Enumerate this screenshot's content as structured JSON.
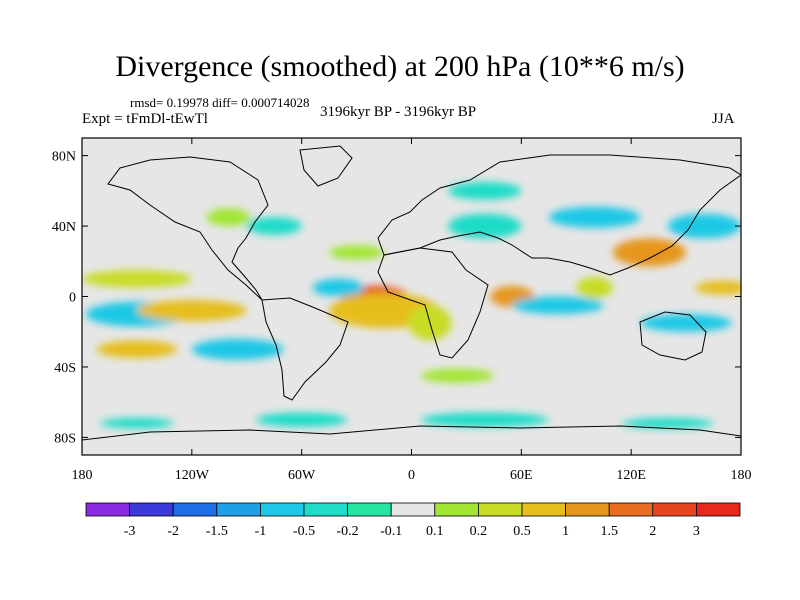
{
  "chart_data": {
    "type": "heatmap",
    "title": "Divergence (smoothed) at 200 hPa (10**6 m/s)",
    "stats": "rmsd= 0.19978 diff= 0.000714028",
    "experiment": "Expt = tFmDl-tEwTl",
    "period": "3196kyr BP - 3196kyr BP",
    "season": "JJA",
    "x_ticks": [
      {
        "value": -180,
        "label": "180"
      },
      {
        "value": -120,
        "label": "120W"
      },
      {
        "value": -60,
        "label": "60W"
      },
      {
        "value": 0,
        "label": "0"
      },
      {
        "value": 60,
        "label": "60E"
      },
      {
        "value": 120,
        "label": "120E"
      },
      {
        "value": 180,
        "label": "180"
      }
    ],
    "y_ticks": [
      {
        "value": 80,
        "label": "80N"
      },
      {
        "value": 40,
        "label": "40N"
      },
      {
        "value": 0,
        "label": "0"
      },
      {
        "value": -40,
        "label": "40S"
      },
      {
        "value": -80,
        "label": "80S"
      }
    ],
    "xlim": [
      -180,
      180
    ],
    "ylim": [
      -90,
      90
    ],
    "colorbar": {
      "colors": [
        "#8a2be2",
        "#3b3bdc",
        "#1e6ee6",
        "#1ea0e6",
        "#1ec8e6",
        "#1edcc8",
        "#24e6a0",
        "#e6e6e6",
        "#a0e632",
        "#c8dc28",
        "#e6be1e",
        "#e6961e",
        "#e66e1e",
        "#e6461e",
        "#e6281e"
      ],
      "labels": [
        "-3",
        "-2",
        "-1.5",
        "-1",
        "-0.5",
        "-0.2",
        "-0.1",
        "0.1",
        "0.2",
        "0.5",
        "1",
        "1.5",
        "2",
        "3"
      ]
    },
    "anomaly_regions": [
      {
        "lon": -20,
        "lat": 0,
        "rlon": 18,
        "rlat": 6,
        "level": 13
      },
      {
        "lon": -15,
        "lat": -8,
        "rlon": 30,
        "rlat": 10,
        "level": 10
      },
      {
        "lon": -40,
        "lat": 5,
        "rlon": 14,
        "rlat": 5,
        "level": 4
      },
      {
        "lon": -150,
        "lat": -10,
        "rlon": 28,
        "rlat": 7,
        "level": 4
      },
      {
        "lon": -120,
        "lat": -8,
        "rlon": 30,
        "rlat": 6,
        "level": 10
      },
      {
        "lon": -150,
        "lat": 10,
        "rlon": 30,
        "rlat": 5,
        "level": 9
      },
      {
        "lon": -95,
        "lat": -30,
        "rlon": 25,
        "rlat": 6,
        "level": 4
      },
      {
        "lon": -150,
        "lat": -30,
        "rlon": 22,
        "rlat": 5,
        "level": 10
      },
      {
        "lon": 10,
        "lat": -15,
        "rlon": 12,
        "rlat": 10,
        "level": 9
      },
      {
        "lon": 55,
        "lat": 0,
        "rlon": 12,
        "rlat": 6,
        "level": 11
      },
      {
        "lon": 80,
        "lat": -5,
        "rlon": 25,
        "rlat": 5,
        "level": 4
      },
      {
        "lon": 150,
        "lat": -15,
        "rlon": 25,
        "rlat": 5,
        "level": 4
      },
      {
        "lon": 130,
        "lat": 25,
        "rlon": 20,
        "rlat": 8,
        "level": 11
      },
      {
        "lon": 100,
        "lat": 45,
        "rlon": 25,
        "rlat": 6,
        "level": 4
      },
      {
        "lon": 40,
        "lat": 40,
        "rlon": 20,
        "rlat": 7,
        "level": 5
      },
      {
        "lon": 160,
        "lat": 40,
        "rlon": 20,
        "rlat": 7,
        "level": 4
      },
      {
        "lon": -75,
        "lat": 40,
        "rlon": 15,
        "rlat": 5,
        "level": 5
      },
      {
        "lon": -100,
        "lat": 45,
        "rlon": 12,
        "rlat": 5,
        "level": 8
      },
      {
        "lon": 40,
        "lat": 60,
        "rlon": 20,
        "rlat": 5,
        "level": 5
      },
      {
        "lon": 25,
        "lat": -45,
        "rlon": 20,
        "rlat": 4,
        "level": 8
      },
      {
        "lon": 40,
        "lat": -70,
        "rlon": 35,
        "rlat": 4,
        "level": 5
      },
      {
        "lon": -60,
        "lat": -70,
        "rlon": 25,
        "rlat": 4,
        "level": 5
      },
      {
        "lon": -150,
        "lat": -72,
        "rlon": 20,
        "rlat": 3,
        "level": 5
      },
      {
        "lon": 140,
        "lat": -72,
        "rlon": 25,
        "rlat": 3,
        "level": 5
      },
      {
        "lon": 100,
        "lat": 5,
        "rlon": 10,
        "rlat": 6,
        "level": 9
      },
      {
        "lon": -30,
        "lat": 25,
        "rlon": 15,
        "rlat": 4,
        "level": 8
      },
      {
        "lon": 170,
        "lat": 5,
        "rlon": 15,
        "rlat": 4,
        "level": 10
      }
    ]
  }
}
